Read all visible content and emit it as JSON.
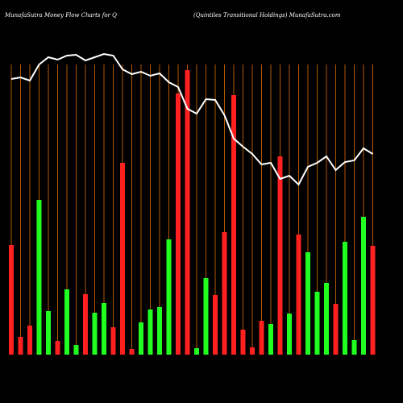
{
  "chart_data": {
    "type": "bar-line",
    "title": "MunafaSutra  Money Flow  Charts for Q",
    "subtitle": "(Quintiles Transitional Holdings) MunafaSutra.com",
    "ylim": [
      0,
      380
    ],
    "bars": {
      "values": [
        136,
        22,
        36,
        192,
        54,
        17,
        81,
        12,
        75,
        52,
        64,
        34,
        238,
        7,
        40,
        56,
        59,
        143,
        324,
        353,
        8,
        95,
        74,
        152,
        322,
        31,
        9,
        42,
        38,
        246,
        51,
        149,
        127,
        78,
        89,
        63,
        140,
        18,
        171,
        135
      ],
      "colors": [
        "#ff2020",
        "#ff2020",
        "#ff2020",
        "#20ff20",
        "#20ff20",
        "#ff2020",
        "#20ff20",
        "#20ff20",
        "#ff2020",
        "#20ff20",
        "#20ff20",
        "#ff2020",
        "#ff2020",
        "#ff2020",
        "#20ff20",
        "#20ff20",
        "#20ff20",
        "#20ff20",
        "#ff2020",
        "#ff2020",
        "#20ff20",
        "#20ff20",
        "#ff2020",
        "#ff2020",
        "#ff2020",
        "#ff2020",
        "#ff2020",
        "#ff2020",
        "#20ff20",
        "#ff2020",
        "#20ff20",
        "#ff2020",
        "#20ff20",
        "#20ff20",
        "#20ff20",
        "#ff2020",
        "#20ff20",
        "#20ff20",
        "#20ff20",
        "#ff2020"
      ]
    },
    "line": {
      "color": "#ffffff",
      "values": [
        342,
        344,
        340,
        360,
        369,
        366,
        371,
        372,
        365,
        369,
        373,
        371,
        354,
        348,
        351,
        346,
        349,
        338,
        332,
        305,
        299,
        317,
        316,
        297,
        268,
        258,
        249,
        236,
        238,
        218,
        222,
        211,
        233,
        238,
        246,
        229,
        239,
        241,
        256,
        249
      ]
    },
    "gridline_color": "#b35900"
  }
}
